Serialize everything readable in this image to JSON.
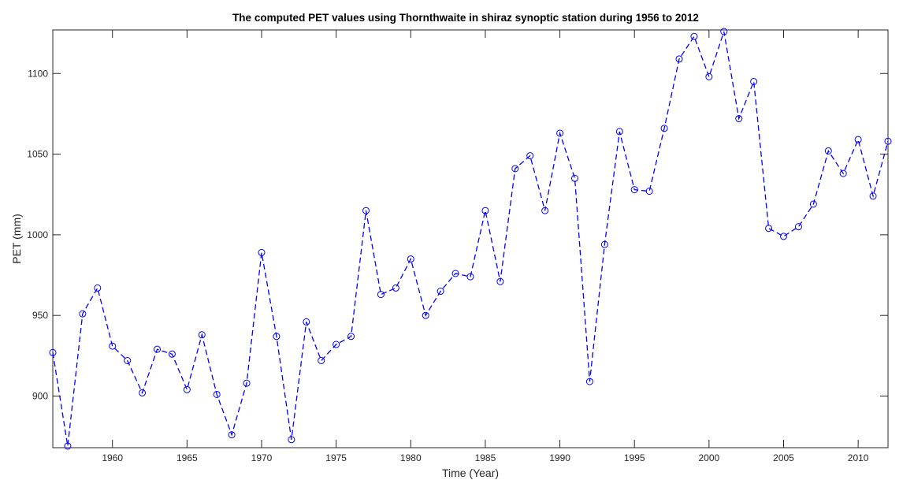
{
  "chart_data": {
    "type": "line",
    "title": "The computed PET values using  Thornthwaite in shiraz synoptic station during 1956 to 2012",
    "xlabel": "Time (Year)",
    "ylabel": "PET (mm)",
    "xlim": [
      1956,
      2012
    ],
    "ylim": [
      868,
      1127
    ],
    "xticks": [
      1960,
      1965,
      1970,
      1975,
      1980,
      1985,
      1990,
      1995,
      2000,
      2005,
      2010
    ],
    "yticks": [
      900,
      950,
      1000,
      1050,
      1100
    ],
    "grid": false,
    "line_color": "#0000ff",
    "line_style": "dashed",
    "marker": "circle",
    "series": [
      {
        "name": "PET",
        "x": [
          1956,
          1957,
          1958,
          1959,
          1960,
          1961,
          1962,
          1963,
          1964,
          1965,
          1966,
          1967,
          1968,
          1969,
          1970,
          1971,
          1972,
          1973,
          1974,
          1975,
          1976,
          1977,
          1978,
          1979,
          1980,
          1981,
          1982,
          1983,
          1984,
          1985,
          1986,
          1987,
          1988,
          1989,
          1990,
          1991,
          1992,
          1993,
          1994,
          1995,
          1996,
          1997,
          1998,
          1999,
          2000,
          2001,
          2002,
          2003,
          2004,
          2005,
          2006,
          2007,
          2008,
          2009,
          2010,
          2011,
          2012
        ],
        "values": [
          927,
          869,
          951,
          967,
          931,
          922,
          902,
          929,
          926,
          904,
          938,
          901,
          876,
          908,
          989,
          937,
          873,
          946,
          922,
          932,
          937,
          1015,
          963,
          967,
          985,
          950,
          965,
          976,
          974,
          1015,
          971,
          1041,
          1049,
          1015,
          1063,
          1035,
          909,
          994,
          1064,
          1028,
          1027,
          1066,
          1109,
          1123,
          1098,
          1126,
          1072,
          1095,
          1004,
          999,
          1005,
          1019,
          1052,
          1038,
          1059,
          1024,
          1058
        ]
      }
    ]
  }
}
